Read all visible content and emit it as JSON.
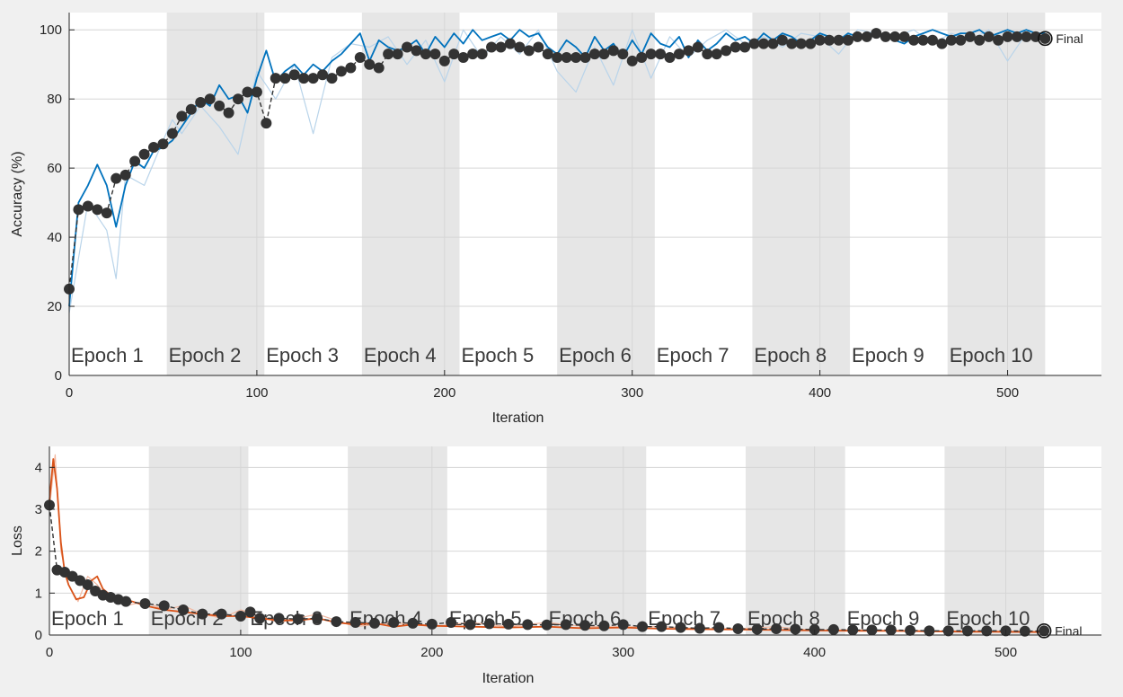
{
  "chart_data": [
    {
      "type": "line",
      "xlabel": "Iteration",
      "ylabel": "Accuracy (%)",
      "xlim": [
        0,
        550
      ],
      "ylim": [
        0,
        105
      ],
      "xticks": [
        0,
        100,
        200,
        300,
        400,
        500
      ],
      "yticks": [
        0,
        20,
        40,
        60,
        80,
        100
      ],
      "grid": true,
      "epochs": [
        "Epoch 1",
        "Epoch 2",
        "Epoch 3",
        "Epoch 4",
        "Epoch 5",
        "Epoch 6",
        "Epoch 7",
        "Epoch 8",
        "Epoch 9",
        "Epoch 10"
      ],
      "epoch_iterations": 52,
      "final_label": "Final",
      "final_point": [
        520,
        97.5
      ],
      "series": [
        {
          "role": "training-raw",
          "color": "#b9d4ea",
          "x": [
            0,
            10,
            20,
            25,
            30,
            40,
            50,
            55,
            60,
            70,
            80,
            90,
            100,
            110,
            120,
            130,
            140,
            150,
            160,
            170,
            180,
            190,
            200,
            210,
            220,
            230,
            240,
            250,
            260,
            270,
            280,
            290,
            300,
            310,
            320,
            330,
            340,
            350,
            360,
            370,
            380,
            390,
            400,
            410,
            420,
            430,
            440,
            450,
            460,
            470,
            480,
            490,
            500,
            510,
            520
          ],
          "y": [
            18,
            50,
            42,
            28,
            58,
            55,
            68,
            74,
            70,
            78,
            72,
            64,
            88,
            80,
            90,
            70,
            92,
            96,
            95,
            98,
            90,
            97,
            85,
            100,
            92,
            98,
            93,
            100,
            88,
            82,
            95,
            84,
            100,
            86,
            98,
            92,
            97,
            100,
            96,
            98,
            95,
            99,
            98,
            93,
            100,
            99,
            98,
            100,
            96,
            99,
            97,
            100,
            91,
            99,
            98
          ]
        },
        {
          "role": "training-smoothed",
          "color": "#0072bd",
          "x": [
            0,
            5,
            10,
            15,
            20,
            25,
            30,
            35,
            40,
            45,
            50,
            55,
            60,
            65,
            70,
            75,
            80,
            85,
            90,
            95,
            100,
            105,
            110,
            115,
            120,
            125,
            130,
            135,
            140,
            145,
            150,
            155,
            160,
            165,
            170,
            175,
            180,
            185,
            190,
            195,
            200,
            205,
            210,
            215,
            220,
            225,
            230,
            235,
            240,
            245,
            250,
            255,
            260,
            265,
            270,
            275,
            280,
            285,
            290,
            295,
            300,
            305,
            310,
            315,
            320,
            325,
            330,
            335,
            340,
            345,
            350,
            355,
            360,
            365,
            370,
            375,
            380,
            385,
            390,
            395,
            400,
            405,
            410,
            415,
            420,
            425,
            430,
            435,
            440,
            445,
            450,
            455,
            460,
            465,
            470,
            475,
            480,
            485,
            490,
            495,
            500,
            505,
            510,
            515,
            520
          ],
          "y": [
            20,
            50,
            55,
            61,
            55,
            43,
            55,
            62,
            60,
            65,
            66,
            68,
            72,
            76,
            80,
            78,
            84,
            80,
            81,
            76,
            86,
            94,
            85,
            88,
            90,
            87,
            90,
            88,
            91,
            93,
            96,
            99,
            91,
            97,
            95,
            94,
            95,
            97,
            93,
            98,
            95,
            99,
            96,
            100,
            97,
            98,
            99,
            97,
            100,
            98,
            99,
            95,
            93,
            97,
            95,
            92,
            98,
            94,
            96,
            92,
            97,
            93,
            99,
            96,
            95,
            98,
            92,
            97,
            94,
            96,
            99,
            97,
            98,
            96,
            99,
            97,
            99,
            98,
            96,
            97,
            99,
            98,
            97,
            99,
            98,
            99,
            98,
            99,
            97,
            96,
            98,
            99,
            100,
            99,
            98,
            99,
            99,
            100,
            98,
            99,
            100,
            99,
            100,
            99,
            99
          ]
        },
        {
          "role": "validation",
          "color": "#333333",
          "x": [
            0,
            5,
            10,
            15,
            20,
            25,
            30,
            35,
            40,
            45,
            50,
            55,
            60,
            65,
            70,
            75,
            80,
            85,
            90,
            95,
            100,
            105,
            110,
            115,
            120,
            125,
            130,
            135,
            140,
            145,
            150,
            155,
            160,
            165,
            170,
            175,
            180,
            185,
            190,
            195,
            200,
            205,
            210,
            215,
            220,
            225,
            230,
            235,
            240,
            245,
            250,
            255,
            260,
            265,
            270,
            275,
            280,
            285,
            290,
            295,
            300,
            305,
            310,
            315,
            320,
            325,
            330,
            335,
            340,
            345,
            350,
            355,
            360,
            365,
            370,
            375,
            380,
            385,
            390,
            395,
            400,
            405,
            410,
            415,
            420,
            425,
            430,
            435,
            440,
            445,
            450,
            455,
            460,
            465,
            470,
            475,
            480,
            485,
            490,
            495,
            500,
            505,
            510,
            515,
            520
          ],
          "y": [
            25,
            48,
            49,
            48,
            47,
            57,
            58,
            62,
            64,
            66,
            67,
            70,
            75,
            77,
            79,
            80,
            78,
            76,
            80,
            82,
            82,
            73,
            86,
            86,
            87,
            86,
            86,
            87,
            86,
            88,
            89,
            92,
            90,
            89,
            93,
            93,
            95,
            94,
            93,
            93,
            91,
            93,
            92,
            93,
            93,
            95,
            95,
            96,
            95,
            94,
            95,
            93,
            92,
            92,
            92,
            92,
            93,
            93,
            94,
            93,
            91,
            92,
            93,
            93,
            92,
            93,
            94,
            95,
            93,
            93,
            94,
            95,
            95,
            96,
            96,
            96,
            97,
            96,
            96,
            96,
            97,
            97,
            97,
            97,
            98,
            98,
            99,
            98,
            98,
            98,
            97,
            97,
            97,
            96,
            97,
            97,
            98,
            97,
            98,
            97,
            98,
            98,
            98,
            98,
            97.5
          ]
        }
      ]
    },
    {
      "type": "line",
      "xlabel": "Iteration",
      "ylabel": "Loss",
      "xlim": [
        0,
        550
      ],
      "ylim": [
        0,
        4.5
      ],
      "xticks": [
        0,
        100,
        200,
        300,
        400,
        500
      ],
      "yticks": [
        0,
        1,
        2,
        3,
        4
      ],
      "grid": true,
      "epochs": [
        "Epoch 1",
        "Epoch 2",
        "Epoch 3",
        "Epoch 4",
        "Epoch 5",
        "Epoch 6",
        "Epoch 7",
        "Epoch 8",
        "Epoch 9",
        "Epoch 10"
      ],
      "epoch_iterations": 52,
      "final_label": "Final",
      "final_point": [
        520,
        0.1
      ],
      "series": [
        {
          "role": "training-raw",
          "color": "#f2b8a0",
          "x": [
            0,
            3,
            6,
            10,
            15,
            20,
            25,
            30,
            40,
            50,
            60,
            70,
            80,
            90,
            100,
            120,
            140,
            160,
            180,
            200,
            220,
            240,
            260,
            280,
            300,
            320,
            340,
            360,
            380,
            400,
            420,
            440,
            460,
            480,
            500,
            520
          ],
          "y": [
            3.0,
            4.3,
            2.0,
            1.2,
            0.8,
            1.4,
            1.2,
            0.9,
            0.7,
            0.8,
            0.6,
            0.7,
            0.5,
            0.4,
            0.6,
            0.3,
            0.5,
            0.2,
            0.3,
            0.2,
            0.3,
            0.2,
            0.3,
            0.2,
            0.2,
            0.2,
            0.15,
            0.15,
            0.2,
            0.1,
            0.12,
            0.1,
            0.08,
            0.1,
            0.06,
            0.06
          ]
        },
        {
          "role": "training-smoothed",
          "color": "#d95319",
          "x": [
            0,
            2,
            4,
            6,
            8,
            10,
            14,
            18,
            22,
            25,
            28,
            32,
            36,
            40,
            50,
            60,
            70,
            80,
            90,
            100,
            110,
            120,
            130,
            140,
            150,
            160,
            170,
            180,
            190,
            200,
            220,
            240,
            260,
            280,
            300,
            320,
            340,
            360,
            380,
            400,
            420,
            440,
            460,
            480,
            500,
            520
          ],
          "y": [
            3.2,
            4.2,
            3.5,
            2.2,
            1.5,
            1.2,
            0.85,
            0.9,
            1.3,
            1.4,
            1.1,
            0.95,
            0.9,
            0.85,
            0.7,
            0.6,
            0.55,
            0.5,
            0.45,
            0.45,
            0.4,
            0.35,
            0.35,
            0.4,
            0.3,
            0.25,
            0.28,
            0.2,
            0.25,
            0.22,
            0.2,
            0.18,
            0.2,
            0.16,
            0.18,
            0.15,
            0.14,
            0.13,
            0.12,
            0.11,
            0.1,
            0.1,
            0.09,
            0.08,
            0.08,
            0.07
          ]
        },
        {
          "role": "validation",
          "color": "#333333",
          "x": [
            0,
            4,
            8,
            12,
            16,
            20,
            24,
            28,
            32,
            36,
            40,
            50,
            60,
            70,
            80,
            90,
            100,
            105,
            110,
            120,
            130,
            140,
            150,
            160,
            170,
            180,
            190,
            200,
            210,
            220,
            230,
            240,
            250,
            260,
            270,
            280,
            290,
            300,
            310,
            320,
            330,
            340,
            350,
            360,
            370,
            380,
            390,
            400,
            410,
            420,
            430,
            440,
            450,
            460,
            470,
            480,
            490,
            500,
            510,
            520
          ],
          "y": [
            3.1,
            1.55,
            1.5,
            1.4,
            1.3,
            1.2,
            1.05,
            0.95,
            0.9,
            0.85,
            0.8,
            0.75,
            0.7,
            0.6,
            0.5,
            0.5,
            0.45,
            0.55,
            0.4,
            0.4,
            0.38,
            0.4,
            0.32,
            0.3,
            0.28,
            0.3,
            0.28,
            0.26,
            0.3,
            0.25,
            0.27,
            0.26,
            0.25,
            0.24,
            0.25,
            0.23,
            0.22,
            0.25,
            0.2,
            0.2,
            0.18,
            0.16,
            0.18,
            0.15,
            0.14,
            0.15,
            0.14,
            0.13,
            0.13,
            0.12,
            0.12,
            0.12,
            0.11,
            0.1,
            0.1,
            0.1,
            0.1,
            0.1,
            0.09,
            0.1
          ]
        }
      ]
    }
  ]
}
